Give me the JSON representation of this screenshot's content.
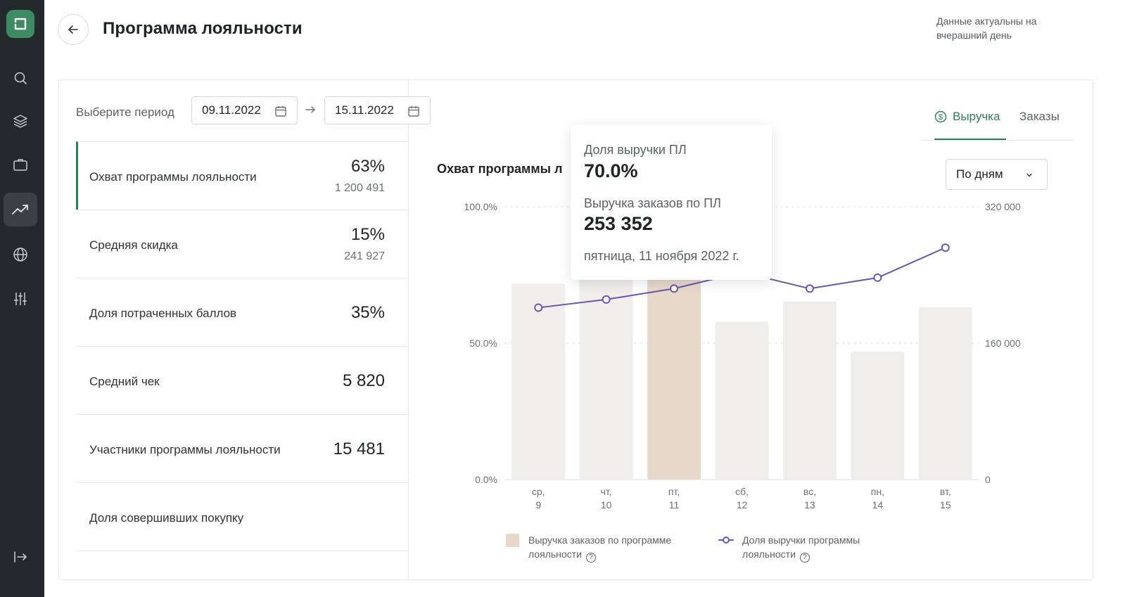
{
  "header": {
    "title": "Программа лояльности",
    "data_note": "Данные актуальны на вчерашний день"
  },
  "sidebar": {
    "items": [
      {
        "icon": "search-icon"
      },
      {
        "icon": "layers-icon"
      },
      {
        "icon": "briefcase-icon"
      },
      {
        "icon": "trending-up-icon",
        "active": true
      },
      {
        "icon": "globe-icon"
      },
      {
        "icon": "sliders-icon"
      }
    ],
    "bottom_icon": "logout-icon"
  },
  "period": {
    "label": "Выберите период",
    "from": "09.11.2022",
    "to": "15.11.2022"
  },
  "tabs": [
    {
      "label": "Выручка",
      "active": true
    },
    {
      "label": "Заказы",
      "active": false
    }
  ],
  "metrics": [
    {
      "label": "Охват программы лояльности",
      "value": "63%",
      "sub": "1 200 491"
    },
    {
      "label": "Средняя скидка",
      "value": "15%",
      "sub": "241 927"
    },
    {
      "label": "Доля потраченных баллов",
      "value": "35%",
      "sub": ""
    },
    {
      "label": "Средний чек",
      "value": "5 820",
      "sub": ""
    },
    {
      "label": "Участники программы лояльности",
      "value": "15 481",
      "sub": ""
    },
    {
      "label": "Доля совершивших покупку",
      "value": "",
      "sub": ""
    }
  ],
  "chart_title": "Охват программы л",
  "granularity": {
    "selected": "По дням"
  },
  "tooltip": {
    "share_label": "Доля выручки ПЛ",
    "share_value": "70.0%",
    "revenue_label": "Выручка заказов по ПЛ",
    "revenue_value": "253 352",
    "date": "пятница, 11 ноября 2022 г."
  },
  "legend": {
    "bars_line1": "Выручка заказов по программе",
    "bars_line2": "лояльности",
    "line_line1": "Доля выручки программы",
    "line_line2": "лояльности"
  },
  "colors": {
    "accent": "#2f7d57",
    "line": "#6a55b0",
    "bar": "#efeeeb",
    "bar_highlight": "#e6d9ca"
  },
  "chart_data": {
    "type": "bar",
    "categories": [
      [
        "ср,",
        "9"
      ],
      [
        "чт,",
        "10"
      ],
      [
        "пт,",
        "11"
      ],
      [
        "сб,",
        "12"
      ],
      [
        "вс,",
        "13"
      ],
      [
        "пн,",
        "14"
      ],
      [
        "вт,",
        "15"
      ]
    ],
    "series": [
      {
        "name": "Выручка заказов по программе лояльности",
        "axis": "right",
        "type": "bar",
        "values": [
          230000,
          240000,
          253352,
          185000,
          209000,
          150000,
          202000
        ]
      },
      {
        "name": "Доля выручки программы лояльности",
        "axis": "left",
        "type": "line",
        "values": [
          63.0,
          66.0,
          70.0,
          76.0,
          70.0,
          74.0,
          85.0
        ]
      }
    ],
    "highlight_index": 2,
    "yleft": {
      "ticks": [
        "100.0%",
        "50.0%",
        "0.0%"
      ],
      "min": 0,
      "max": 100
    },
    "yright": {
      "ticks": [
        "320 000",
        "160 000",
        "0"
      ],
      "min": 0,
      "max": 320000
    },
    "grid": true
  }
}
